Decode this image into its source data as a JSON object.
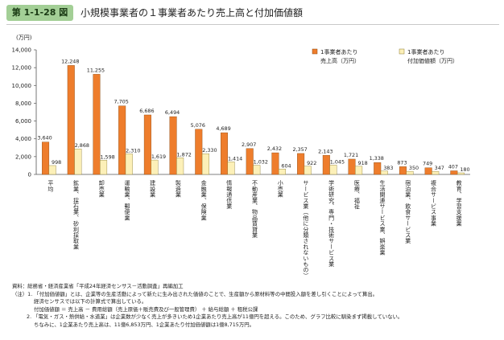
{
  "header": {
    "figure_label": "第 1-1-28 図",
    "title": "小規模事業者の１事業者あたり売上高と付加価値額"
  },
  "chart_data": {
    "type": "bar",
    "ylabel": "(万円)",
    "ylim": [
      0,
      14000
    ],
    "yticks": [
      0,
      2000,
      4000,
      6000,
      8000,
      10000,
      12000,
      14000
    ],
    "ytick_labels": [
      "0",
      "2,000",
      "4,000",
      "6,000",
      "8,000",
      "10,000",
      "12,000",
      "14,000"
    ],
    "legend_position": "top-right",
    "categories": [
      "平均",
      "鉱業、採石業、砂利採取業",
      "卸売業",
      "運輸業、郵便業",
      "建設業",
      "製造業",
      "金融業、保険業",
      "情報通信業",
      "不動産業、物品賃貸業",
      "小売業",
      "サービス業（他に分類されないもの）",
      "学術研究、専門・技術サービス業",
      "医療、福祉",
      "生活関連サービス業、娯楽業",
      "宿泊業、飲食サービス業",
      "複合サービス事業",
      "教育、学習支援業"
    ],
    "series": [
      {
        "name": "1事業者あたり売上高（万円）",
        "color": "#ee7d2c",
        "values": [
          3640,
          12248,
          11255,
          7705,
          6686,
          6494,
          5076,
          4689,
          2907,
          2432,
          2357,
          2143,
          1721,
          1338,
          873,
          749,
          407
        ],
        "labels": [
          "3,640",
          "12,248",
          "11,255",
          "7,705",
          "6,686",
          "6,494",
          "5,076",
          "4,689",
          "2,907",
          "2,432",
          "2,357",
          "2,143",
          "1,721",
          "1,338",
          "873",
          "749",
          "407"
        ]
      },
      {
        "name": "1事業者あたり付加価値額（万円）",
        "color": "#fcf0b8",
        "values": [
          998,
          2868,
          1598,
          2310,
          1619,
          1872,
          2330,
          1414,
          1032,
          604,
          922,
          1045,
          918,
          383,
          350,
          347,
          180
        ],
        "labels": [
          "998",
          "2,868",
          "1,598",
          "2,310",
          "1,619",
          "1,872",
          "2,330",
          "1,414",
          "1,032",
          "604",
          "922",
          "1,045",
          "918",
          "383",
          "350",
          "347",
          "180"
        ]
      }
    ]
  },
  "notes": {
    "source": "資料：総務省・経済産業省「平成24年経済センサス－活動調査」再編加工",
    "note1": "（注）1. 「付加価値額」とは、企業等の生産活動によって新たに生み出された価値のことで、生産額から原材料等の中間投入額を差し引くことによって算出。",
    "note1b": "経済センサスでは以下の計算式で算出している。",
    "note1c": "付加価値額 ＝ 売上高 － 費用総額（売上原価＋販売費及び一般管理費） ＋ 給与総額 ＋ 租税公課",
    "note2": "2. 「電気・ガス・熱供給・水道業」は企業数が少なく売上が多きいため1企業あたり売上高が11億円を超える。このため、グラフ比較に馴染まず掲載していない。",
    "note2b": "ちなみに、1企業あたり売上高は、11億6,853万円、1企業あたり付加価値額は1億8,715万円。"
  }
}
